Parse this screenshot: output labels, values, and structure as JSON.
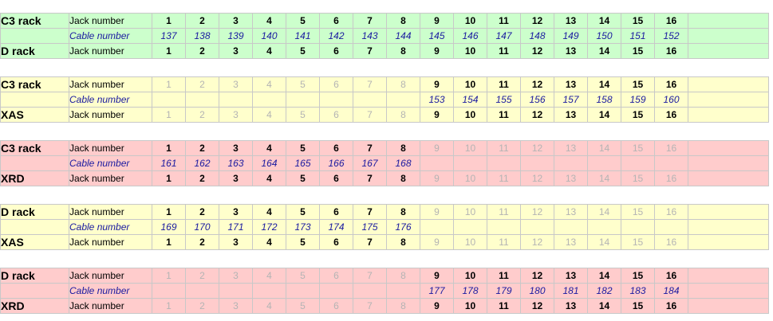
{
  "labels": {
    "jack": "Jack number",
    "cable": "Cable number"
  },
  "jack_numbers": [
    "1",
    "2",
    "3",
    "4",
    "5",
    "6",
    "7",
    "8",
    "9",
    "10",
    "11",
    "12",
    "13",
    "14",
    "15",
    "16"
  ],
  "colors": {
    "green": "#ccffcc",
    "yellow": "#ffffcc",
    "red": "#ffcccc",
    "cable_text": "#1a1aa0",
    "dim_text": "#b4b4b4"
  },
  "blocks": [
    {
      "color": "green",
      "from": "C3 rack",
      "to": "D rack",
      "from_active": [
        1,
        16
      ],
      "to_active": [
        1,
        16
      ],
      "cable_start": 1,
      "cables": [
        "137",
        "138",
        "139",
        "140",
        "141",
        "142",
        "143",
        "144",
        "145",
        "146",
        "147",
        "148",
        "149",
        "150",
        "151",
        "152"
      ]
    },
    {
      "color": "yellow",
      "from": "C3 rack",
      "to": "XAS",
      "from_active": [
        9,
        16
      ],
      "to_active": [
        9,
        16
      ],
      "cable_start": 9,
      "cables": [
        "153",
        "154",
        "155",
        "156",
        "157",
        "158",
        "159",
        "160"
      ]
    },
    {
      "color": "red",
      "from": "C3 rack",
      "to": "XRD",
      "from_active": [
        1,
        8
      ],
      "to_active": [
        1,
        8
      ],
      "cable_start": 1,
      "cables": [
        "161",
        "162",
        "163",
        "164",
        "165",
        "166",
        "167",
        "168"
      ]
    },
    {
      "color": "yellow",
      "from": "D rack",
      "to": "XAS",
      "from_active": [
        1,
        8
      ],
      "to_active": [
        1,
        8
      ],
      "cable_start": 1,
      "cables": [
        "169",
        "170",
        "171",
        "172",
        "173",
        "174",
        "175",
        "176"
      ]
    },
    {
      "color": "red",
      "from": "D rack",
      "to": "XRD",
      "from_active": [
        9,
        16
      ],
      "to_active": [
        9,
        16
      ],
      "cable_start": 9,
      "cables": [
        "177",
        "178",
        "179",
        "180",
        "181",
        "182",
        "183",
        "184"
      ]
    }
  ]
}
